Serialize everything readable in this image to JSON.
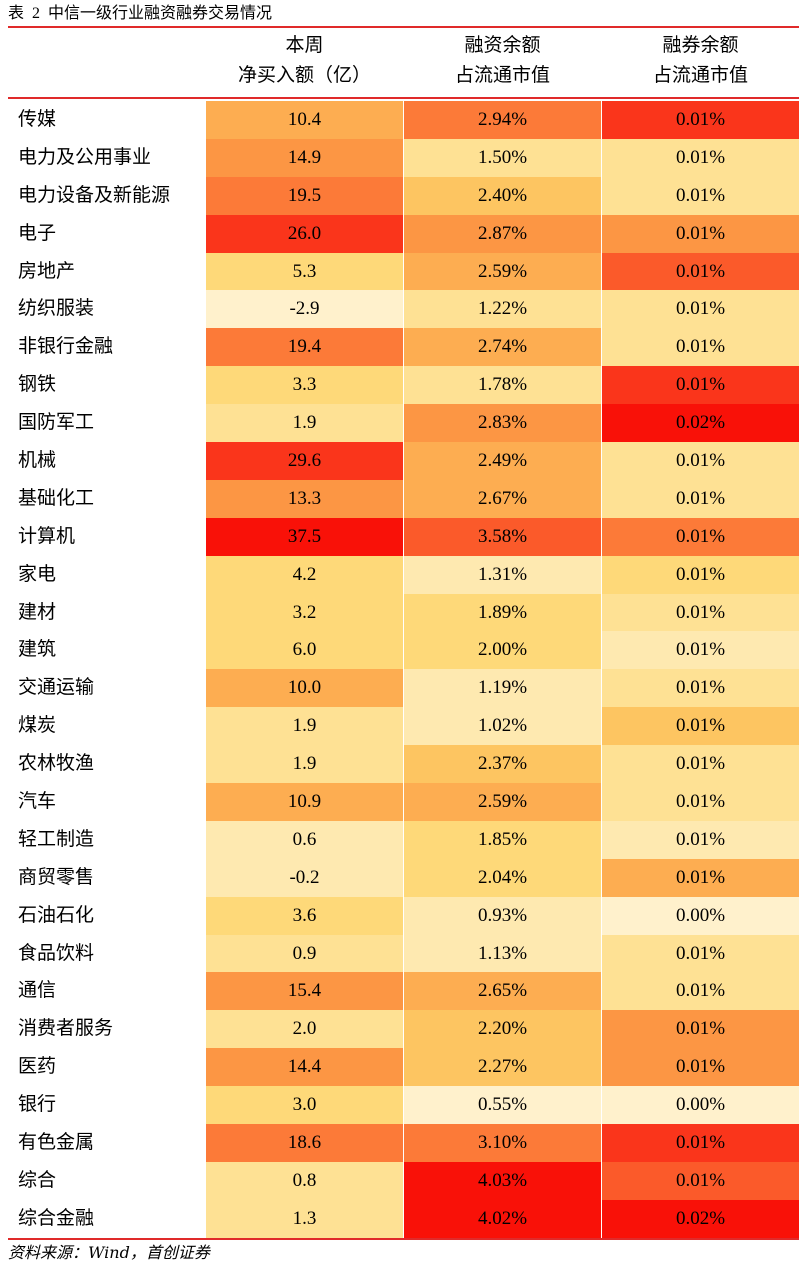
{
  "title": {
    "label": "表",
    "number": "2",
    "text": "中信一级行业融资融券交易情况"
  },
  "headers": {
    "col1": [
      "本周",
      "净买入额（亿）"
    ],
    "col2": [
      "融资余额",
      "占流通市值"
    ],
    "col3": [
      "融券余额",
      "占流通市值"
    ]
  },
  "colors": {
    "heat": [
      "#fff1cc",
      "#fee9b0",
      "#fee194",
      "#fed979",
      "#fdc561",
      "#fdad51",
      "#fc9644",
      "#fc7a38",
      "#fb5a2a",
      "#fa351b",
      "#f91108"
    ]
  },
  "rows": [
    {
      "name": "传媒",
      "net": "10.4",
      "fin": "2.94%",
      "sec": "0.01%",
      "lv": [
        5,
        7,
        9
      ]
    },
    {
      "name": "电力及公用事业",
      "net": "14.9",
      "fin": "1.50%",
      "sec": "0.01%",
      "lv": [
        6,
        2,
        2
      ]
    },
    {
      "name": "电力设备及新能源",
      "net": "19.5",
      "fin": "2.40%",
      "sec": "0.01%",
      "lv": [
        7,
        4,
        2
      ]
    },
    {
      "name": "电子",
      "net": "26.0",
      "fin": "2.87%",
      "sec": "0.01%",
      "lv": [
        9,
        6,
        6
      ]
    },
    {
      "name": "房地产",
      "net": "5.3",
      "fin": "2.59%",
      "sec": "0.01%",
      "lv": [
        3,
        5,
        8
      ]
    },
    {
      "name": "纺织服装",
      "net": "-2.9",
      "fin": "1.22%",
      "sec": "0.01%",
      "lv": [
        0,
        2,
        2
      ]
    },
    {
      "name": "非银行金融",
      "net": "19.4",
      "fin": "2.74%",
      "sec": "0.01%",
      "lv": [
        7,
        5,
        2
      ]
    },
    {
      "name": "钢铁",
      "net": "3.3",
      "fin": "1.78%",
      "sec": "0.01%",
      "lv": [
        3,
        2,
        9
      ]
    },
    {
      "name": "国防军工",
      "net": "1.9",
      "fin": "2.83%",
      "sec": "0.02%",
      "lv": [
        2,
        6,
        10
      ]
    },
    {
      "name": "机械",
      "net": "29.6",
      "fin": "2.49%",
      "sec": "0.01%",
      "lv": [
        9,
        5,
        2
      ]
    },
    {
      "name": "基础化工",
      "net": "13.3",
      "fin": "2.67%",
      "sec": "0.01%",
      "lv": [
        6,
        5,
        2
      ]
    },
    {
      "name": "计算机",
      "net": "37.5",
      "fin": "3.58%",
      "sec": "0.01%",
      "lv": [
        10,
        8,
        7
      ]
    },
    {
      "name": "家电",
      "net": "4.2",
      "fin": "1.31%",
      "sec": "0.01%",
      "lv": [
        3,
        1,
        3
      ]
    },
    {
      "name": "建材",
      "net": "3.2",
      "fin": "1.89%",
      "sec": "0.01%",
      "lv": [
        3,
        3,
        2
      ]
    },
    {
      "name": "建筑",
      "net": "6.0",
      "fin": "2.00%",
      "sec": "0.01%",
      "lv": [
        3,
        3,
        1
      ]
    },
    {
      "name": "交通运输",
      "net": "10.0",
      "fin": "1.19%",
      "sec": "0.01%",
      "lv": [
        5,
        1,
        2
      ]
    },
    {
      "name": "煤炭",
      "net": "1.9",
      "fin": "1.02%",
      "sec": "0.01%",
      "lv": [
        2,
        1,
        4
      ]
    },
    {
      "name": "农林牧渔",
      "net": "1.9",
      "fin": "2.37%",
      "sec": "0.01%",
      "lv": [
        2,
        4,
        2
      ]
    },
    {
      "name": "汽车",
      "net": "10.9",
      "fin": "2.59%",
      "sec": "0.01%",
      "lv": [
        5,
        5,
        2
      ]
    },
    {
      "name": "轻工制造",
      "net": "0.6",
      "fin": "1.85%",
      "sec": "0.01%",
      "lv": [
        1,
        3,
        1
      ]
    },
    {
      "name": "商贸零售",
      "net": "-0.2",
      "fin": "2.04%",
      "sec": "0.01%",
      "lv": [
        1,
        3,
        5
      ]
    },
    {
      "name": "石油石化",
      "net": "3.6",
      "fin": "0.93%",
      "sec": "0.00%",
      "lv": [
        3,
        1,
        0
      ]
    },
    {
      "name": "食品饮料",
      "net": "0.9",
      "fin": "1.13%",
      "sec": "0.01%",
      "lv": [
        2,
        1,
        2
      ]
    },
    {
      "name": "通信",
      "net": "15.4",
      "fin": "2.65%",
      "sec": "0.01%",
      "lv": [
        6,
        5,
        2
      ]
    },
    {
      "name": "消费者服务",
      "net": "2.0",
      "fin": "2.20%",
      "sec": "0.01%",
      "lv": [
        2,
        4,
        6
      ]
    },
    {
      "name": "医药",
      "net": "14.4",
      "fin": "2.27%",
      "sec": "0.01%",
      "lv": [
        6,
        4,
        6
      ]
    },
    {
      "name": "银行",
      "net": "3.0",
      "fin": "0.55%",
      "sec": "0.00%",
      "lv": [
        3,
        0,
        0
      ]
    },
    {
      "name": "有色金属",
      "net": "18.6",
      "fin": "3.10%",
      "sec": "0.01%",
      "lv": [
        7,
        7,
        9
      ]
    },
    {
      "name": "综合",
      "net": "0.8",
      "fin": "4.03%",
      "sec": "0.01%",
      "lv": [
        2,
        10,
        8
      ]
    },
    {
      "name": "综合金融",
      "net": "1.3",
      "fin": "4.02%",
      "sec": "0.02%",
      "lv": [
        2,
        10,
        10
      ]
    }
  ],
  "source": "资料来源：Wind，首创证券"
}
